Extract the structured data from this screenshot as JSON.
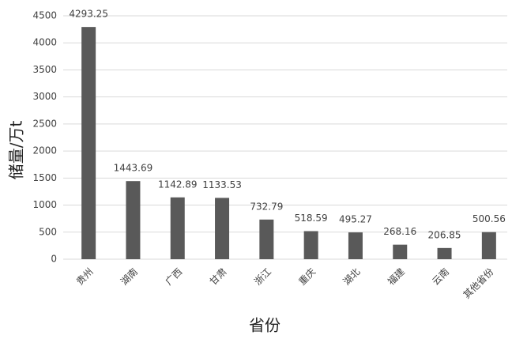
{
  "chart_data": {
    "type": "bar",
    "categories": [
      "贵州",
      "湖南",
      "广西",
      "甘肃",
      "浙江",
      "重庆",
      "湖北",
      "福建",
      "云南",
      "其他省份"
    ],
    "values": [
      4293.25,
      1443.69,
      1142.89,
      1133.53,
      732.79,
      518.59,
      495.27,
      268.16,
      206.85,
      500.56
    ],
    "color": "#595959",
    "y_label": "储量/万t",
    "x_label": "省份",
    "ylim": [
      0,
      4500
    ],
    "yticks": [
      0,
      500,
      1000,
      1500,
      2000,
      2500,
      3000,
      3500,
      4000,
      4500
    ],
    "grid": true
  }
}
